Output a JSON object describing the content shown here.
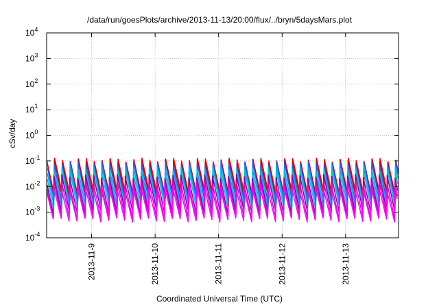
{
  "chart_data": {
    "type": "line",
    "title": "/data/run/goesPlots/archive/2013-11-13/20:00/flux/../bryn/5daysMars.plot",
    "xlabel": "Coordinated Universal Time (UTC)",
    "ylabel": "cSv/day",
    "y_scale": "log",
    "ylim": [
      0.0001,
      10000
    ],
    "xlim": [
      "2013-11-08T07:00",
      "2013-11-13T20:00"
    ],
    "grid": true,
    "x_ticks": [
      "2013-11-9",
      "2013-11-10",
      "2013-11-11",
      "2013-11-12",
      "2013-11-13"
    ],
    "y_ticks": [
      {
        "base": "10",
        "exp": "-4"
      },
      {
        "base": "10",
        "exp": "-3"
      },
      {
        "base": "10",
        "exp": "-2"
      },
      {
        "base": "10",
        "exp": "-1"
      },
      {
        "base": "10",
        "exp": "0"
      },
      {
        "base": "10",
        "exp": "1"
      },
      {
        "base": "10",
        "exp": "2"
      },
      {
        "base": "10",
        "exp": "3"
      },
      {
        "base": "10",
        "exp": "4"
      }
    ],
    "cycle_hours": 3,
    "series": [
      {
        "color": "#ff0000",
        "peak": 0.11,
        "trough": 0.0045
      },
      {
        "color": "#cc0000",
        "peak": 0.1,
        "trough": 0.0035
      },
      {
        "color": "#1f5fff",
        "peak": 0.08,
        "trough": 0.0025
      },
      {
        "color": "#00aaff",
        "peak": 0.055,
        "trough": 0.0018
      },
      {
        "color": "#00c8c8",
        "peak": 0.04,
        "trough": 0.0013
      },
      {
        "color": "#8800aa",
        "peak": 0.025,
        "trough": 0.0009
      },
      {
        "color": "#dd00dd",
        "peak": 0.015,
        "trough": 0.0006
      },
      {
        "color": "#ff00ff",
        "peak": 0.009,
        "trough": 0.0005
      }
    ]
  }
}
